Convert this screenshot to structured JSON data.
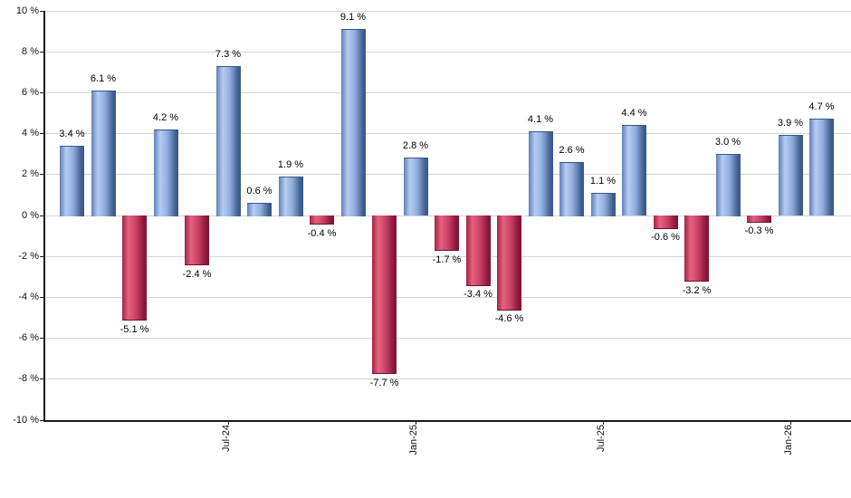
{
  "chart_data": {
    "type": "bar",
    "title": "",
    "xlabel": "",
    "ylabel": "",
    "unit": "%",
    "ylim": [
      -10,
      10
    ],
    "grid": "horizontal gridlines every 2%",
    "legend": "none",
    "values": [
      3.4,
      6.1,
      -5.1,
      4.2,
      -2.4,
      7.3,
      0.6,
      1.9,
      -0.4,
      9.1,
      -7.7,
      2.8,
      -1.7,
      -3.4,
      -4.6,
      4.1,
      2.6,
      1.1,
      4.4,
      -0.6,
      -3.2,
      3.0,
      -0.3,
      3.9,
      4.7
    ],
    "bar_labels": [
      "3.4 %",
      "6.1 %",
      "-5.1 %",
      "4.2 %",
      "-2.4 %",
      "7.3 %",
      "0.6 %",
      "1.9 %",
      "-0.4 %",
      "9.1 %",
      "-7.7 %",
      "2.8 %",
      "-1.7 %",
      "-3.4 %",
      "-4.6 %",
      "4.1 %",
      "2.6 %",
      "1.1 %",
      "4.4 %",
      "-0.6 %",
      "-3.2 %",
      "3.0 %",
      "-0.3 %",
      "3.9 %",
      "4.7 %"
    ],
    "x_ticks": [
      {
        "bar_index": 5,
        "label": "Jul-24"
      },
      {
        "bar_index": 11,
        "label": "Jan-25"
      },
      {
        "bar_index": 17,
        "label": "Jul-25"
      },
      {
        "bar_index": 23,
        "label": "Jan-26"
      }
    ],
    "y_ticks": [
      {
        "value": 10,
        "label": "10 %"
      },
      {
        "value": 8,
        "label": "8 %"
      },
      {
        "value": 6,
        "label": "6 %"
      },
      {
        "value": 4,
        "label": "4 %"
      },
      {
        "value": 2,
        "label": "2 %"
      },
      {
        "value": 0,
        "label": "0 %"
      },
      {
        "value": -2,
        "label": "-2 %"
      },
      {
        "value": -4,
        "label": "-4 %"
      },
      {
        "value": -6,
        "label": "-6 %"
      },
      {
        "value": -8,
        "label": "-8 %"
      },
      {
        "value": -10,
        "label": "-10 %"
      }
    ],
    "colors": {
      "positive_bar_edge": "#3a5685",
      "positive_bar_highlight": "#b7cdf2",
      "negative_bar_edge": "#811332",
      "negative_bar_highlight": "#e7627f",
      "gridline": "#d5d5d5",
      "axis_line": "#1a1a1a",
      "label_text": "#000000"
    }
  }
}
